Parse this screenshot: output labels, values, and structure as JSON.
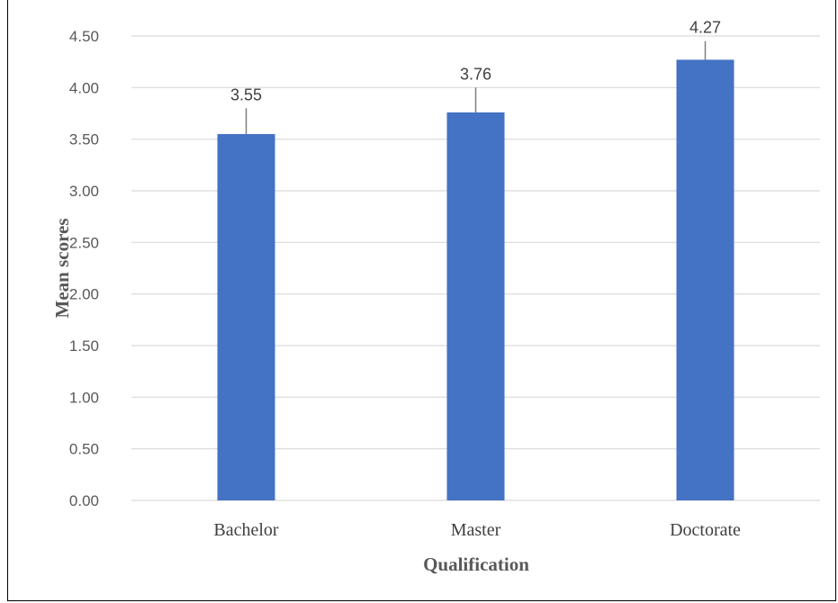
{
  "chart_data": {
    "type": "bar",
    "categories": [
      "Bachelor",
      "Master",
      "Doctorate"
    ],
    "values": [
      3.55,
      3.76,
      4.27
    ],
    "error_plus": [
      0.25,
      0.24,
      0.18
    ],
    "data_labels": [
      "3.55",
      "3.76",
      "4.27"
    ],
    "xlabel": "Qualification",
    "ylabel": "Mean scores",
    "ylim": [
      0,
      4.5
    ],
    "yticks": [
      "0.00",
      "0.50",
      "1.00",
      "1.50",
      "2.00",
      "2.50",
      "3.00",
      "3.50",
      "4.00",
      "4.50"
    ],
    "grid": true,
    "bar_color": "#4472C4",
    "grid_color": "#D9D9D9",
    "errorbar_color": "#7F7F7F"
  }
}
